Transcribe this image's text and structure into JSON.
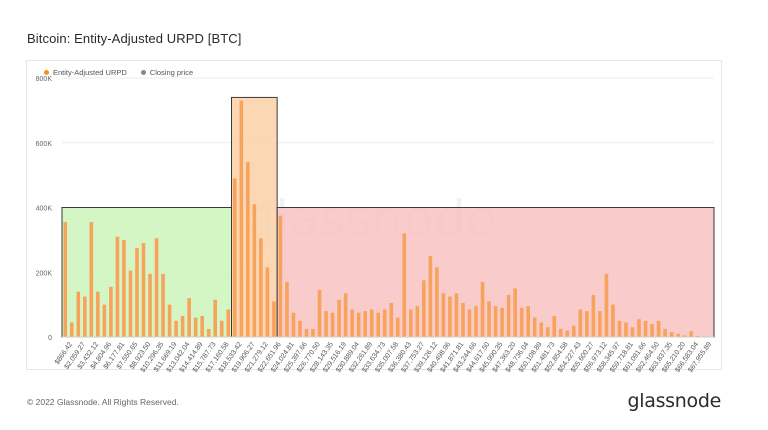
{
  "title": "Bitcoin: Entity-Adjusted URPD [BTC]",
  "legend": [
    {
      "label": "Entity-Adjusted URPD",
      "color": "#f7931a"
    },
    {
      "label": "Closing price",
      "color": "#888888"
    }
  ],
  "footer": "© 2022 Glassnode. All Rights Reserved.",
  "brand": "glassnode",
  "watermark": "glassnode",
  "colors": {
    "bar": "#f7a35c",
    "green_zone": "#ccf5bb",
    "orange_zone": "#fbd0a6",
    "red_zone": "#f8c2c2",
    "grid": "#ececec"
  },
  "chart_data": {
    "type": "bar",
    "ylim": [
      0,
      800000
    ],
    "y_ticks": [
      0,
      200000,
      400000,
      600000,
      800000
    ],
    "y_tick_labels": [
      "0",
      "200K",
      "400K",
      "600K",
      "800K"
    ],
    "tick_labels": [
      "$866.42",
      "$2,059.27",
      "$3,432.12",
      "$4,804.96",
      "$6,177.81",
      "$7,550.65",
      "$8,923.50",
      "$10,296.35",
      "$11,669.19",
      "$13,042.04",
      "$14,414.89",
      "$15,787.73",
      "$17,160.58",
      "$18,533.42",
      "$19,906.27",
      "$21,279.12",
      "$22,651.96",
      "$24,024.81",
      "$25,397.66",
      "$26,770.50",
      "$28,143.35",
      "$29,516.19",
      "$30,889.04",
      "$32,261.89",
      "$33,634.73",
      "$35,007.58",
      "$36,380.43",
      "$37,753.27",
      "$39,126.12",
      "$40,498.96",
      "$41,871.81",
      "$43,244.66",
      "$44,617.50",
      "$45,990.35",
      "$47,363.20",
      "$48,736.04",
      "$50,108.89",
      "$51,481.73",
      "$52,854.58",
      "$54,227.43",
      "$55,600.27",
      "$56,973.12",
      "$58,345.97",
      "$59,718.81",
      "$61,091.66",
      "$62,464.50",
      "$63,837.35",
      "$65,210.20",
      "$66,583.04",
      "$67,955.89"
    ],
    "values": [
      355000,
      45000,
      140000,
      125000,
      355000,
      140000,
      100000,
      155000,
      310000,
      300000,
      205000,
      275000,
      290000,
      195000,
      305000,
      195000,
      100000,
      50000,
      65000,
      120000,
      60000,
      65000,
      25000,
      115000,
      50000,
      85000,
      490000,
      730000,
      540000,
      410000,
      305000,
      215000,
      110000,
      375000,
      170000,
      75000,
      50000,
      25000,
      25000,
      145000,
      80000,
      75000,
      115000,
      135000,
      85000,
      75000,
      80000,
      85000,
      75000,
      85000,
      105000,
      60000,
      320000,
      85000,
      95000,
      175000,
      250000,
      215000,
      135000,
      125000,
      135000,
      105000,
      85000,
      95000,
      170000,
      110000,
      95000,
      90000,
      130000,
      150000,
      90000,
      95000,
      60000,
      45000,
      30000,
      65000,
      25000,
      20000,
      35000,
      85000,
      80000,
      130000,
      80000,
      195000,
      100000,
      50000,
      45000,
      30000,
      55000,
      50000,
      40000,
      50000,
      25000,
      15000,
      10000,
      5000,
      18000,
      3000,
      2000,
      1000
    ],
    "zones": [
      {
        "name": "green",
        "from_index": 0,
        "to_index": 25,
        "top": 400000
      },
      {
        "name": "orange",
        "from_index": 26,
        "to_index": 32,
        "top": 740000
      },
      {
        "name": "red",
        "from_index": 33,
        "to_index": 99,
        "top": 400000
      }
    ],
    "grid": true,
    "legend_position": "top-left"
  }
}
